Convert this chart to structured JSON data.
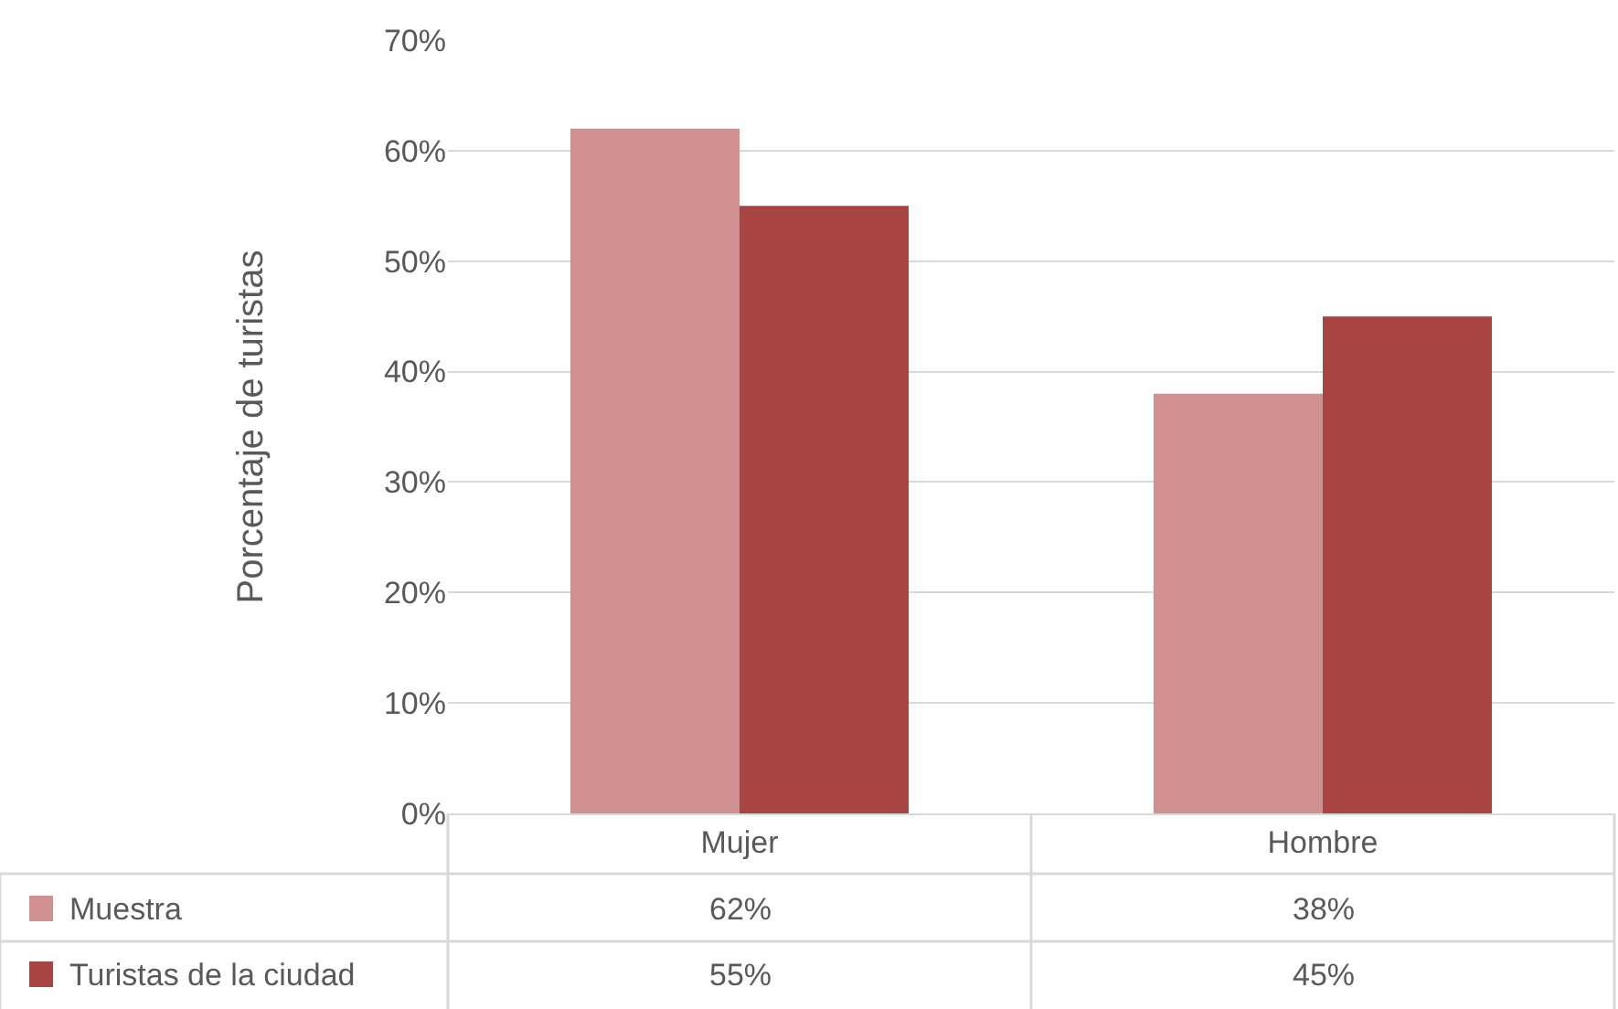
{
  "chart_data": {
    "type": "bar",
    "ylabel": "Porcentaje de turistas",
    "categories": [
      "Mujer",
      "Hombre"
    ],
    "series": [
      {
        "name": "Muestra",
        "color": "#d19191",
        "values": [
          62,
          38
        ],
        "value_labels": [
          "62%",
          "38%"
        ]
      },
      {
        "name": "Turistas de la ciudad",
        "color": "#a84442",
        "values": [
          55,
          45
        ],
        "value_labels": [
          "55%",
          "45%"
        ]
      }
    ],
    "ylim": [
      0,
      70
    ],
    "yticks": [
      {
        "value": 0,
        "label": "0%"
      },
      {
        "value": 10,
        "label": "10%"
      },
      {
        "value": 20,
        "label": "20%"
      },
      {
        "value": 30,
        "label": "30%"
      },
      {
        "value": 40,
        "label": "40%"
      },
      {
        "value": 50,
        "label": "50%"
      },
      {
        "value": 60,
        "label": "60%"
      },
      {
        "value": 70,
        "label": "70%"
      }
    ],
    "grid": "y",
    "legend": "bottom"
  }
}
